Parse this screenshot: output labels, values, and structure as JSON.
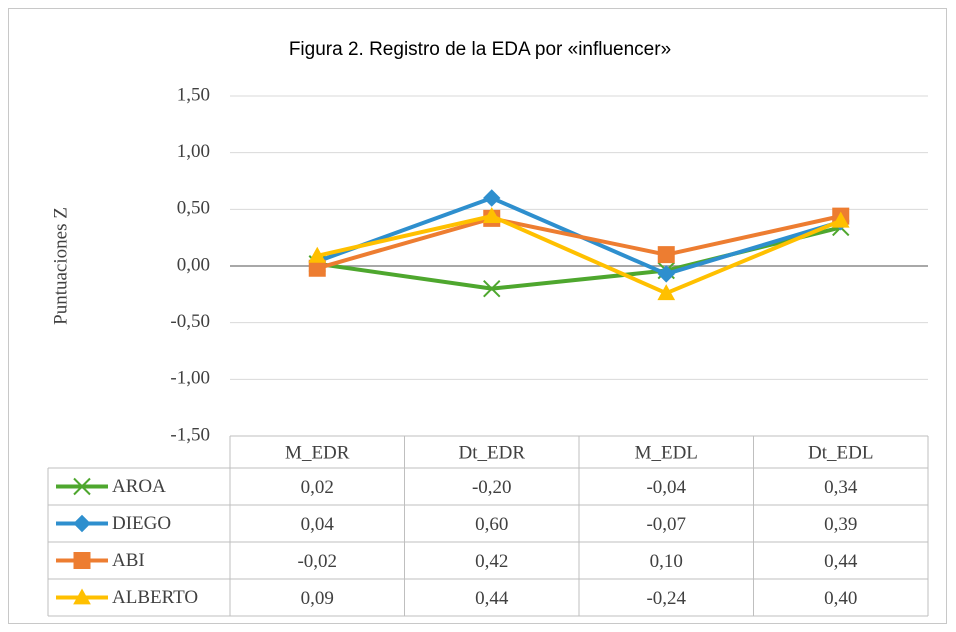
{
  "chart_data": {
    "type": "line",
    "title": "Figura 2. Registro de la EDA por «influencer»",
    "y_label": "Puntuaciones Z",
    "categories": [
      "M_EDR",
      "Dt_EDR",
      "M_EDL",
      "Dt_EDL"
    ],
    "series": [
      {
        "name": "AROA",
        "color": "#4ea72e",
        "marker": "x",
        "values": [
          0.02,
          -0.2,
          -0.04,
          0.34
        ],
        "value_labels": [
          "0,02",
          "-0,20",
          "-0,04",
          "0,34"
        ]
      },
      {
        "name": "DIEGO",
        "color": "#2e8fce",
        "marker": "diamond",
        "values": [
          0.04,
          0.6,
          -0.07,
          0.39
        ],
        "value_labels": [
          "0,04",
          "0,60",
          "-0,07",
          "0,39"
        ]
      },
      {
        "name": "ABI",
        "color": "#ed7d31",
        "marker": "square",
        "values": [
          -0.02,
          0.42,
          0.1,
          0.44
        ],
        "value_labels": [
          "-0,02",
          "0,42",
          "0,10",
          "0,44"
        ]
      },
      {
        "name": "ALBERTO",
        "color": "#ffc000",
        "marker": "triangle",
        "values": [
          0.09,
          0.44,
          -0.24,
          0.4
        ],
        "value_labels": [
          "0,09",
          "0,44",
          "-0,24",
          "0,40"
        ]
      }
    ],
    "ylim": [
      -1.5,
      1.5
    ],
    "yticks": [
      {
        "value": -1.5,
        "label": "-1,50"
      },
      {
        "value": -1,
        "label": "-1,00"
      },
      {
        "value": -0.5,
        "label": "-0,50"
      },
      {
        "value": 0,
        "label": "0,00"
      },
      {
        "value": 0.5,
        "label": "0,50"
      },
      {
        "value": 1,
        "label": "1,00"
      },
      {
        "value": 1.5,
        "label": "1,50"
      }
    ],
    "grid": true
  }
}
